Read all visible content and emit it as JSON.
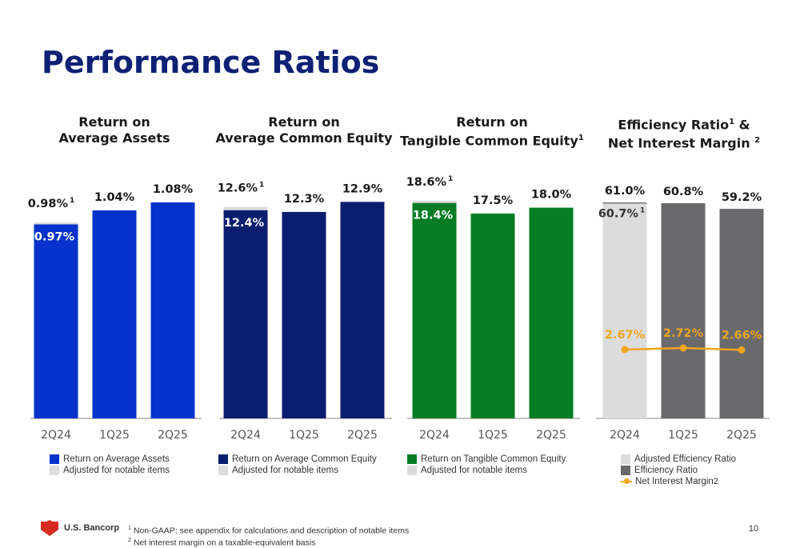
{
  "title": "Performance Ratios",
  "panels": [
    {
      "title_line1": "Return on",
      "title_line2": "Average Assets",
      "title_sup": "",
      "title_sup2": ""
    },
    {
      "title_line1": "Return on",
      "title_line2": "Average Common Equity",
      "title_sup": "",
      "title_sup2": ""
    },
    {
      "title_line1": "Return on",
      "title_line2": "Tangible Common Equity",
      "title_sup": "",
      "title_sup2": "1"
    },
    {
      "title_line1": "Efficiency Ratio",
      "title_line1_sup": "1",
      "title_line1_suffix": " &",
      "title_line2": "Net Interest Margin",
      "title_sup2": "2"
    }
  ],
  "colors": {
    "title_navy": "#0c2074",
    "roaa_blue": "#0633cc",
    "roce_navy": "#0b1d6e",
    "rotce_green": "#067d24",
    "adj_light_gray": "#dcdcdc",
    "efficiency_dark_gray": "#6a6a6c",
    "nim_orange": "#f0a51e",
    "axis_gray": "#888888"
  },
  "chart_data": [
    {
      "type": "bar",
      "title": "Return on Average Assets",
      "categories": [
        "2Q24",
        "1Q25",
        "2Q25"
      ],
      "series": [
        {
          "name": "Return on Average Assets",
          "values": [
            0.97,
            1.04,
            1.08
          ],
          "labels": [
            "0.97%",
            "1.04%",
            "1.08%"
          ]
        },
        {
          "name": "Adjusted for notable items",
          "values": [
            0.98,
            null,
            null
          ],
          "labels": [
            "0.98%",
            "",
            ""
          ],
          "label_sup": "1"
        }
      ],
      "ylim": [
        0,
        1.2
      ]
    },
    {
      "type": "bar",
      "title": "Return on Average Common Equity",
      "categories": [
        "2Q24",
        "1Q25",
        "2Q25"
      ],
      "series": [
        {
          "name": "Return on Average Common Equity",
          "values": [
            12.4,
            12.3,
            12.9
          ],
          "labels": [
            "12.4%",
            "12.3%",
            "12.9%"
          ]
        },
        {
          "name": "Adjusted for notable items",
          "values": [
            12.6,
            null,
            null
          ],
          "labels": [
            "12.6%",
            "",
            ""
          ],
          "label_sup": "1"
        }
      ],
      "ylim": [
        0,
        14.3
      ]
    },
    {
      "type": "bar",
      "title": "Return on Tangible Common Equity",
      "categories": [
        "2Q24",
        "1Q25",
        "2Q25"
      ],
      "series": [
        {
          "name": "Return on Tangible Common Equity",
          "values": [
            18.4,
            17.5,
            18.0
          ],
          "labels": [
            "18.4%",
            "17.5%",
            "18.0%"
          ]
        },
        {
          "name": "Adjusted for notable items",
          "values": [
            18.6,
            null,
            null
          ],
          "labels": [
            "18.6%",
            "",
            ""
          ],
          "label_sup": "1"
        }
      ],
      "ylim": [
        0,
        20.5
      ]
    },
    {
      "type": "bar",
      "title": "Efficiency Ratio & Net Interest Margin",
      "categories": [
        "2Q24",
        "1Q25",
        "2Q25"
      ],
      "series": [
        {
          "name": "Adjusted Efficiency Ratio",
          "values": [
            60.7,
            null,
            null
          ],
          "labels": [
            "60.7%",
            "",
            ""
          ],
          "label_sup": "1"
        },
        {
          "name": "Efficiency Ratio",
          "values": [
            61.0,
            60.8,
            59.2
          ],
          "labels": [
            "61.0%",
            "60.8%",
            "59.2%"
          ]
        },
        {
          "name": "Net Interest Margin",
          "type": "line",
          "values": [
            2.67,
            2.72,
            2.66
          ],
          "labels": [
            "2.67%",
            "2.72%",
            "2.66%"
          ]
        }
      ],
      "ylim": [
        0,
        67.8
      ]
    }
  ],
  "legends": [
    [
      {
        "label": "Return on Average Assets",
        "color": "#0633cc"
      },
      {
        "label": "Adjusted for notable items",
        "color": "#dcdcdc"
      }
    ],
    [
      {
        "label": "Return on Average Common Equity",
        "color": "#0b1d6e"
      },
      {
        "label": "Adjusted for notable items",
        "color": "#dcdcdc"
      }
    ],
    [
      {
        "label": "Return on Tangible Common Equity",
        "color": "#067d24"
      },
      {
        "label": "Adjusted for notable items",
        "color": "#dcdcdc"
      }
    ],
    [
      {
        "label": "Adjusted Efficiency Ratio",
        "color": "#dcdcdc"
      },
      {
        "label": "Efficiency Ratio",
        "color": "#6a6a6c"
      },
      {
        "label": "Net Interest Margin",
        "color": "#f0a51e",
        "line": true,
        "sup": "2"
      }
    ]
  ],
  "footer": {
    "logo_text": "U.S. Bancorp",
    "footnote1_sup": "1",
    "footnote1": "Non-GAAP; see appendix for calculations and description of notable items",
    "footnote2_sup": "2",
    "footnote2": "Net interest margin on a taxable-equivalent basis",
    "page_number": "10"
  }
}
